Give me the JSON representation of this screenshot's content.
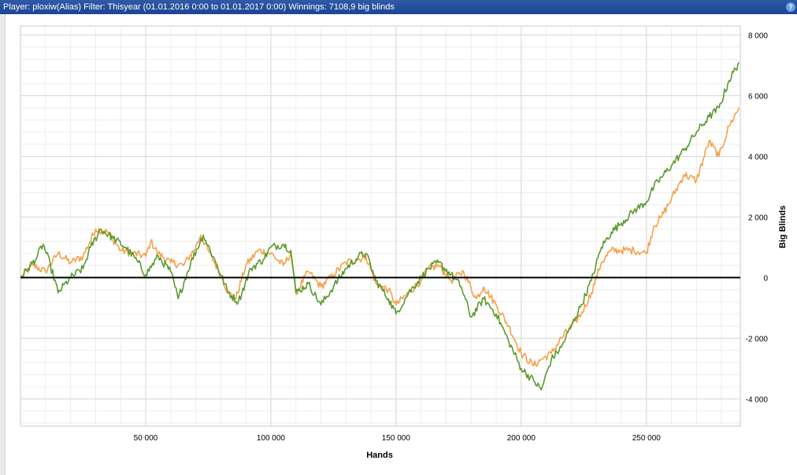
{
  "header": {
    "title": "Player: ploxiw(Alias) Filter: Thisyear (01.01.2016 0:00 to 01.01.2017 0:00) Winnings: 7108,9 big blinds",
    "help_label": "?"
  },
  "colors": {
    "green": "#5b9a2e",
    "orange": "#f5a04a",
    "zero_line": "#000000",
    "grid_major": "#d7d7d7",
    "grid_minor": "#eeeeee"
  },
  "chart_data": {
    "type": "line",
    "xlabel": "Hands",
    "ylabel": "Big Blinds",
    "xlim": [
      0,
      287500
    ],
    "ylim": [
      -4900,
      8300
    ],
    "x_ticks": [
      50000,
      100000,
      150000,
      200000,
      250000
    ],
    "x_tick_labels": [
      "50 000",
      "100 000",
      "150 000",
      "200 000",
      "250 000"
    ],
    "y_ticks": [
      8000,
      6000,
      4000,
      2000,
      0,
      -2000,
      -4000
    ],
    "y_tick_labels": [
      "8 000",
      "6 000",
      "4 000",
      "2 000",
      "0",
      "-2 000",
      "-4 000"
    ],
    "grid": true,
    "series": [
      {
        "color": "#f5a04a",
        "x": [
          0,
          5000,
          10000,
          15000,
          20000,
          25000,
          30000,
          35000,
          40000,
          45000,
          50000,
          52000,
          55000,
          60000,
          65000,
          70000,
          72000,
          75000,
          80000,
          83000,
          86000,
          90000,
          95000,
          100000,
          105000,
          108000,
          110000,
          115000,
          120000,
          125000,
          130000,
          135000,
          138000,
          142000,
          147000,
          150000,
          155000,
          160000,
          163000,
          167000,
          172000,
          177000,
          182000,
          185000,
          190000,
          195000,
          200000,
          205000,
          208000,
          212000,
          216000,
          220000,
          224000,
          228000,
          232000,
          236000,
          240000,
          245000,
          250000,
          253000,
          256000,
          260000,
          265000,
          270000,
          275000,
          279000,
          283000,
          287000
        ],
        "y": [
          0,
          400,
          200,
          800,
          500,
          700,
          1600,
          1500,
          900,
          800,
          700,
          1200,
          800,
          500,
          400,
          1000,
          1400,
          900,
          100,
          -500,
          -700,
          400,
          900,
          800,
          400,
          800,
          -500,
          200,
          -300,
          100,
          500,
          600,
          700,
          -200,
          -400,
          -900,
          -500,
          -100,
          300,
          400,
          -100,
          200,
          -700,
          -300,
          -900,
          -1600,
          -2500,
          -2900,
          -2700,
          -2500,
          -2000,
          -1600,
          -1200,
          -500,
          500,
          900,
          900,
          900,
          800,
          1700,
          2000,
          2600,
          3400,
          3200,
          4500,
          4000,
          5000,
          5600
        ]
      },
      {
        "color": "#5b9a2e",
        "x": [
          0,
          3000,
          6000,
          9000,
          12000,
          15000,
          20000,
          25000,
          28000,
          32000,
          37000,
          42000,
          47000,
          50000,
          55000,
          60000,
          63000,
          68000,
          73000,
          78000,
          83000,
          87000,
          92000,
          97000,
          100000,
          105000,
          108000,
          110000,
          115000,
          120000,
          125000,
          130000,
          135000,
          138000,
          142000,
          147000,
          150000,
          155000,
          160000,
          163000,
          167000,
          172000,
          176000,
          180000,
          185000,
          190000,
          195000,
          200000,
          205000,
          208000,
          212000,
          216000,
          220000,
          224000,
          228000,
          232000,
          236000,
          240000,
          245000,
          250000,
          253000,
          256000,
          260000,
          265000,
          270000,
          275000,
          279000,
          283000,
          287000
        ],
        "y": [
          0,
          300,
          600,
          1100,
          400,
          -500,
          0,
          300,
          1000,
          1600,
          1300,
          1000,
          500,
          100,
          700,
          200,
          -700,
          500,
          1400,
          500,
          -500,
          -800,
          300,
          600,
          1000,
          1100,
          900,
          -500,
          -200,
          -900,
          -300,
          300,
          700,
          800,
          -100,
          -700,
          -1200,
          -500,
          0,
          300,
          500,
          100,
          -300,
          -1300,
          -700,
          -1200,
          -2100,
          -3000,
          -3400,
          -3700,
          -2700,
          -2300,
          -1600,
          -900,
          -100,
          1000,
          1500,
          1800,
          2200,
          2500,
          3000,
          3300,
          3700,
          4200,
          4800,
          5300,
          5600,
          6500,
          7100
        ]
      }
    ]
  }
}
